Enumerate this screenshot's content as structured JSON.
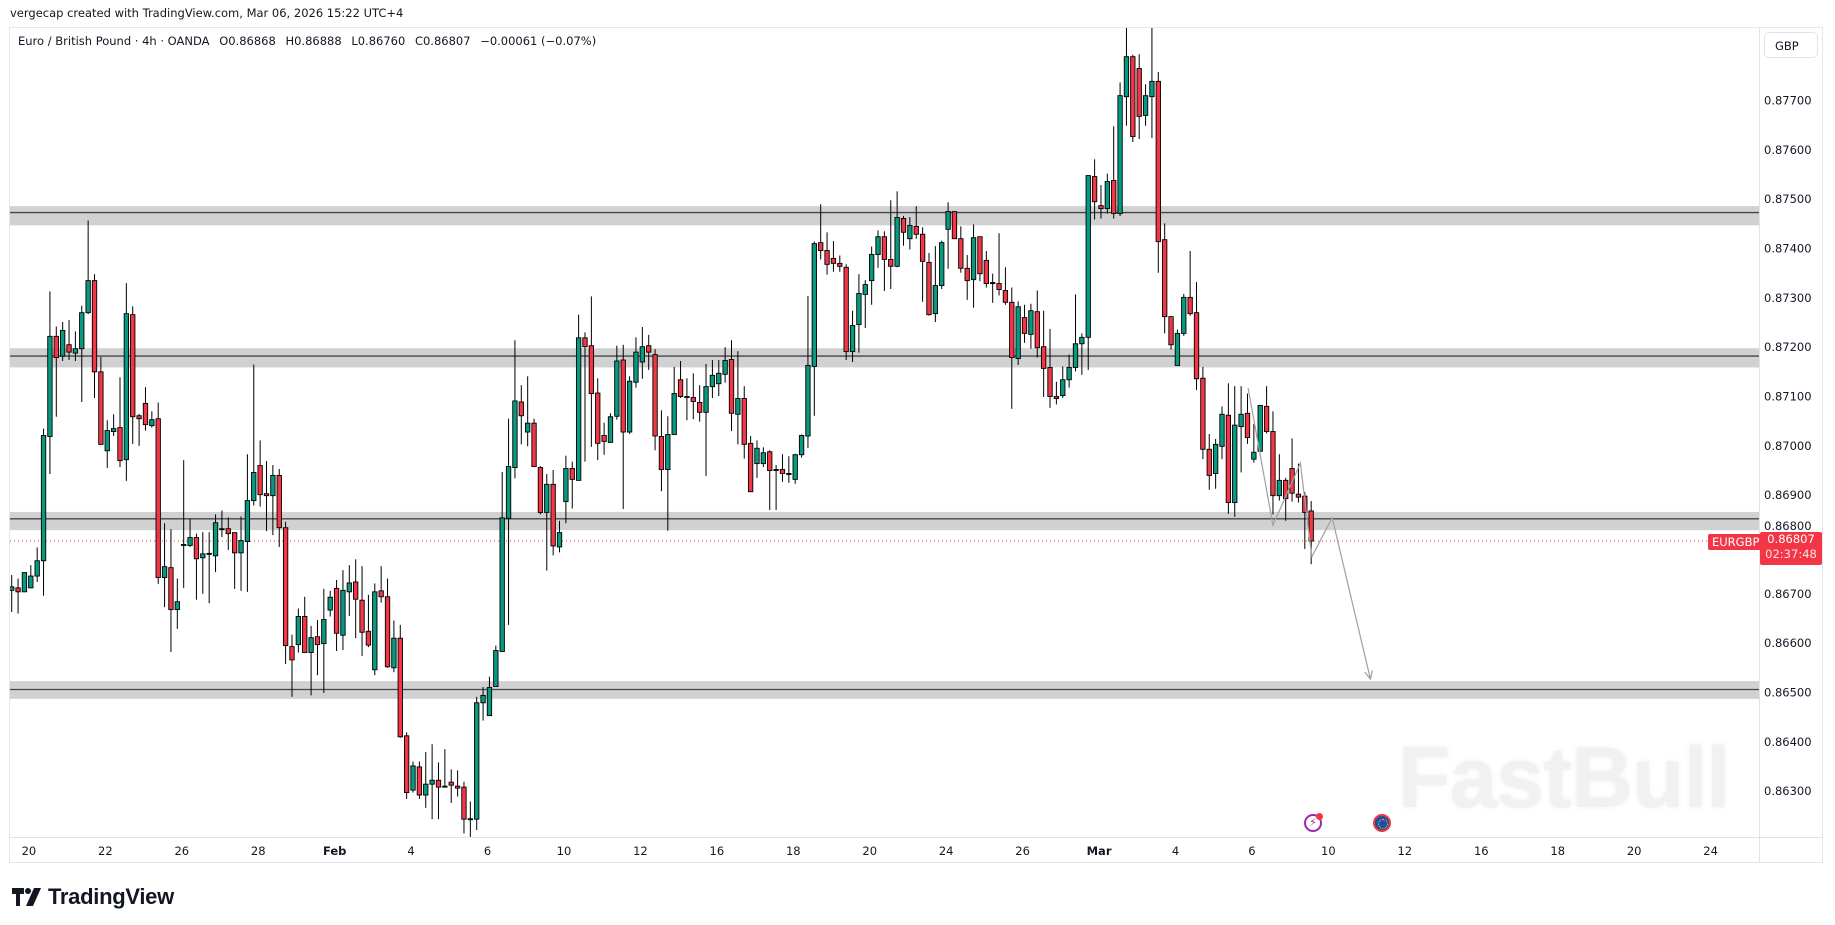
{
  "credit": "vergecap created with TradingView.com, Mar 06, 2026 15:22 UTC+4",
  "legend": {
    "symbol": "Euro / British Pound · 4h · OANDA",
    "open": "O0.86868",
    "high": "H0.86888",
    "low": "L0.86760",
    "close": "C0.86807",
    "change": "−0.00061 (−0.07%)"
  },
  "currency_button": "GBP",
  "current_price": {
    "ticker": "EURGBP",
    "price": "0.86807",
    "countdown": "02:37:48",
    "color": "#f23645"
  },
  "watermark": "FastBull",
  "brand": "TradingView",
  "events": [
    {
      "icon": "lightning-event-icon"
    },
    {
      "icon": "eu-flag-icon"
    }
  ],
  "colors": {
    "up": "#089981",
    "down": "#f23645",
    "zone": "#d1d1d1",
    "zone_line": "#434651",
    "drawing": "#a0a0a0"
  },
  "chart_data": {
    "type": "candlestick",
    "interval": "4h",
    "price_axis": {
      "labels": [
        "0.87700",
        "0.87600",
        "0.87500",
        "0.87400",
        "0.87300",
        "0.87200",
        "0.87100",
        "0.87000",
        "0.86900",
        "0.86800",
        "0.86700",
        "0.86600",
        "0.86500",
        "0.86400",
        "0.86300"
      ],
      "range": [
        0.8622,
        0.8785
      ]
    },
    "time_axis": {
      "labels": [
        "20",
        "22",
        "26",
        "28",
        "Feb",
        "4",
        "6",
        "10",
        "12",
        "16",
        "18",
        "20",
        "24",
        "26",
        "Mar",
        "4",
        "6",
        "10",
        "12",
        "16",
        "18",
        "20",
        "24"
      ],
      "bold": [
        "Feb",
        "Mar"
      ]
    },
    "zones": [
      {
        "top": 0.87486,
        "bottom": 0.87447,
        "line": 0.87473
      },
      {
        "top": 0.87198,
        "bottom": 0.87159,
        "line": 0.87182
      },
      {
        "top": 0.86866,
        "bottom": 0.86829,
        "line": 0.86852
      },
      {
        "top": 0.86523,
        "bottom": 0.86487,
        "line": 0.86506
      }
    ],
    "drawing": [
      [
        194.1,
        0.87117
      ],
      [
        198.0,
        0.86839
      ],
      [
        202.3,
        0.86965
      ],
      [
        204.1,
        0.86775
      ],
      [
        207.3,
        0.86854
      ],
      [
        213.3,
        0.86527
      ]
    ],
    "ohlc": [
      [
        0.86707,
        0.86738,
        0.86663,
        0.86714
      ],
      [
        0.86712,
        0.86731,
        0.8666,
        0.86704
      ],
      [
        0.86704,
        0.86743,
        0.86704,
        0.86743
      ],
      [
        0.86712,
        0.86758,
        0.86712,
        0.86736
      ],
      [
        0.86736,
        0.86794,
        0.86724,
        0.86767
      ],
      [
        0.86767,
        0.87035,
        0.86696,
        0.87021
      ],
      [
        0.87019,
        0.87313,
        0.86943,
        0.87222
      ],
      [
        0.87222,
        0.87242,
        0.87059,
        0.87179
      ],
      [
        0.87182,
        0.87251,
        0.87172,
        0.87234
      ],
      [
        0.87205,
        0.87255,
        0.87174,
        0.8719
      ],
      [
        0.87188,
        0.87232,
        0.87172,
        0.87197
      ],
      [
        0.87197,
        0.87284,
        0.87089,
        0.8727
      ],
      [
        0.8727,
        0.87457,
        0.87267,
        0.87335
      ],
      [
        0.87335,
        0.87348,
        0.87097,
        0.8715
      ],
      [
        0.8715,
        0.8718,
        0.87003,
        0.87003
      ],
      [
        0.8699,
        0.87052,
        0.86955,
        0.87031
      ],
      [
        0.87029,
        0.87064,
        0.8702,
        0.87035
      ],
      [
        0.87037,
        0.87139,
        0.86957,
        0.8697
      ],
      [
        0.86972,
        0.8733,
        0.86929,
        0.87268
      ],
      [
        0.87266,
        0.87283,
        0.87004,
        0.87059
      ],
      [
        0.87061,
        0.87065,
        0.87,
        0.87055
      ],
      [
        0.87086,
        0.87119,
        0.87031,
        0.87043
      ],
      [
        0.87041,
        0.8707,
        0.87037,
        0.87053
      ],
      [
        0.87055,
        0.87088,
        0.8672,
        0.86733
      ],
      [
        0.86733,
        0.86843,
        0.86673,
        0.86755
      ],
      [
        0.86753,
        0.86831,
        0.86582,
        0.86668
      ],
      [
        0.86668,
        0.86731,
        0.86629,
        0.86684
      ],
      [
        0.86798,
        0.86971,
        0.86712,
        0.868
      ],
      [
        0.86798,
        0.86852,
        0.86795,
        0.86814
      ],
      [
        0.86814,
        0.86822,
        0.86688,
        0.86771
      ],
      [
        0.86773,
        0.86825,
        0.867,
        0.86781
      ],
      [
        0.86781,
        0.86825,
        0.86681,
        0.86782
      ],
      [
        0.86777,
        0.86861,
        0.86744,
        0.86844
      ],
      [
        0.86832,
        0.86869,
        0.86815,
        0.86831
      ],
      [
        0.86832,
        0.86855,
        0.86789,
        0.86822
      ],
      [
        0.86824,
        0.86824,
        0.8671,
        0.86783
      ],
      [
        0.86783,
        0.86857,
        0.86706,
        0.86808
      ],
      [
        0.86806,
        0.86983,
        0.86704,
        0.86889
      ],
      [
        0.86889,
        0.87165,
        0.86879,
        0.86946
      ],
      [
        0.8696,
        0.87011,
        0.86877,
        0.86901
      ],
      [
        0.86903,
        0.86969,
        0.86827,
        0.86899
      ],
      [
        0.86899,
        0.86961,
        0.86819,
        0.8694
      ],
      [
        0.8694,
        0.86953,
        0.86795,
        0.86834
      ],
      [
        0.86834,
        0.86846,
        0.86558,
        0.86595
      ],
      [
        0.86593,
        0.86617,
        0.86491,
        0.86566
      ],
      [
        0.86597,
        0.8667,
        0.86581,
        0.86654
      ],
      [
        0.86654,
        0.86694,
        0.86581,
        0.86581
      ],
      [
        0.86581,
        0.86635,
        0.86494,
        0.86611
      ],
      [
        0.86613,
        0.86647,
        0.86535,
        0.86597
      ],
      [
        0.86599,
        0.8671,
        0.86499,
        0.86648
      ],
      [
        0.86667,
        0.86706,
        0.86654,
        0.86693
      ],
      [
        0.86711,
        0.86728,
        0.86584,
        0.8662
      ],
      [
        0.86616,
        0.86748,
        0.86586,
        0.86707
      ],
      [
        0.86704,
        0.86758,
        0.86655,
        0.86722
      ],
      [
        0.86724,
        0.8677,
        0.8661,
        0.86689
      ],
      [
        0.86687,
        0.86756,
        0.86574,
        0.86622
      ],
      [
        0.86624,
        0.86698,
        0.86592,
        0.86596
      ],
      [
        0.86546,
        0.86721,
        0.86535,
        0.86704
      ],
      [
        0.86706,
        0.86756,
        0.86682,
        0.86694
      ],
      [
        0.86694,
        0.86731,
        0.8655,
        0.86552
      ],
      [
        0.8655,
        0.86646,
        0.86541,
        0.8661
      ],
      [
        0.8661,
        0.86637,
        0.86408,
        0.8641
      ],
      [
        0.86412,
        0.86419,
        0.86284,
        0.86297
      ],
      [
        0.86302,
        0.8636,
        0.86297,
        0.86351
      ],
      [
        0.86349,
        0.8636,
        0.86284,
        0.86292
      ],
      [
        0.86292,
        0.86379,
        0.86266,
        0.86314
      ],
      [
        0.86314,
        0.86395,
        0.86243,
        0.86322
      ],
      [
        0.86322,
        0.86358,
        0.86243,
        0.86308
      ],
      [
        0.8631,
        0.86385,
        0.86307,
        0.8631
      ],
      [
        0.86318,
        0.86344,
        0.86276,
        0.86312
      ],
      [
        0.8631,
        0.86342,
        0.86289,
        0.86306
      ],
      [
        0.86308,
        0.86319,
        0.86214,
        0.86243
      ],
      [
        0.86243,
        0.86279,
        0.86207,
        0.86244
      ],
      [
        0.86243,
        0.86491,
        0.86221,
        0.86479
      ],
      [
        0.86479,
        0.86511,
        0.86443,
        0.86494
      ],
      [
        0.86453,
        0.86532,
        0.86453,
        0.8651
      ],
      [
        0.86512,
        0.86595,
        0.86512,
        0.86585
      ],
      [
        0.86583,
        0.86947,
        0.86583,
        0.86854
      ],
      [
        0.86853,
        0.87055,
        0.86637,
        0.86958
      ],
      [
        0.86956,
        0.87214,
        0.86934,
        0.87091
      ],
      [
        0.87089,
        0.87123,
        0.87003,
        0.87061
      ],
      [
        0.87028,
        0.87141,
        0.86999,
        0.87046
      ],
      [
        0.87046,
        0.87055,
        0.86958,
        0.86958
      ],
      [
        0.86956,
        0.86959,
        0.86861,
        0.86865
      ],
      [
        0.86865,
        0.86943,
        0.86747,
        0.86922
      ],
      [
        0.86922,
        0.86951,
        0.86778,
        0.86797
      ],
      [
        0.86795,
        0.86848,
        0.86784,
        0.86824
      ],
      [
        0.86887,
        0.8698,
        0.86843,
        0.86954
      ],
      [
        0.86954,
        0.86968,
        0.86873,
        0.86932
      ],
      [
        0.8693,
        0.87266,
        0.8693,
        0.87219
      ],
      [
        0.87219,
        0.8723,
        0.86968,
        0.87201
      ],
      [
        0.87203,
        0.87303,
        0.86998,
        0.87106
      ],
      [
        0.87107,
        0.87137,
        0.86971,
        0.87005
      ],
      [
        0.87021,
        0.87047,
        0.86982,
        0.87009
      ],
      [
        0.87007,
        0.87066,
        0.87006,
        0.87059
      ],
      [
        0.8706,
        0.87203,
        0.87053,
        0.87172
      ],
      [
        0.87174,
        0.87205,
        0.86872,
        0.87028
      ],
      [
        0.87028,
        0.87141,
        0.87024,
        0.87131
      ],
      [
        0.87129,
        0.8722,
        0.87118,
        0.8719
      ],
      [
        0.8717,
        0.87241,
        0.87136,
        0.87201
      ],
      [
        0.87203,
        0.87225,
        0.87154,
        0.8719
      ],
      [
        0.87185,
        0.87196,
        0.86991,
        0.8702
      ],
      [
        0.87019,
        0.87072,
        0.86908,
        0.86952
      ],
      [
        0.86952,
        0.8706,
        0.86828,
        0.87023
      ],
      [
        0.87023,
        0.8716,
        0.87023,
        0.87106
      ],
      [
        0.87134,
        0.87172,
        0.87097,
        0.871
      ],
      [
        0.871,
        0.87137,
        0.87052,
        0.871
      ],
      [
        0.87098,
        0.87147,
        0.87054,
        0.8709
      ],
      [
        0.87088,
        0.87123,
        0.87049,
        0.87068
      ],
      [
        0.87068,
        0.87166,
        0.86939,
        0.8712
      ],
      [
        0.8712,
        0.87174,
        0.87097,
        0.87143
      ],
      [
        0.87126,
        0.87174,
        0.87101,
        0.87147
      ],
      [
        0.87145,
        0.872,
        0.87128,
        0.87173
      ],
      [
        0.87175,
        0.87214,
        0.8703,
        0.87066
      ],
      [
        0.87064,
        0.87192,
        0.87003,
        0.87096
      ],
      [
        0.87096,
        0.87121,
        0.86974,
        0.87003
      ],
      [
        0.87005,
        0.8702,
        0.86907,
        0.86907
      ],
      [
        0.86964,
        0.87011,
        0.86935,
        0.86995
      ],
      [
        0.86964,
        0.86997,
        0.86957,
        0.86986
      ],
      [
        0.86988,
        0.86991,
        0.8687,
        0.8695
      ],
      [
        0.86952,
        0.86961,
        0.8687,
        0.86952
      ],
      [
        0.86952,
        0.86983,
        0.86927,
        0.86944
      ],
      [
        0.86944,
        0.86979,
        0.86925,
        0.86944
      ],
      [
        0.86932,
        0.86984,
        0.86923,
        0.86982
      ],
      [
        0.86982,
        0.87023,
        0.86976,
        0.87021
      ],
      [
        0.8702,
        0.87304,
        0.86996,
        0.87163
      ],
      [
        0.87161,
        0.87414,
        0.87061,
        0.8741
      ],
      [
        0.87412,
        0.8749,
        0.87378,
        0.87396
      ],
      [
        0.87396,
        0.87433,
        0.87347,
        0.87368
      ],
      [
        0.8738,
        0.87415,
        0.87353,
        0.8737
      ],
      [
        0.8737,
        0.87386,
        0.87353,
        0.87364
      ],
      [
        0.87362,
        0.87368,
        0.87174,
        0.87191
      ],
      [
        0.87191,
        0.87274,
        0.8717,
        0.87244
      ],
      [
        0.87246,
        0.87348,
        0.87189,
        0.87309
      ],
      [
        0.87307,
        0.87336,
        0.87239,
        0.87327
      ],
      [
        0.87335,
        0.87404,
        0.87286,
        0.87388
      ],
      [
        0.87388,
        0.87437,
        0.87361,
        0.87424
      ],
      [
        0.87424,
        0.87435,
        0.87314,
        0.87378
      ],
      [
        0.87378,
        0.87498,
        0.87318,
        0.87364
      ],
      [
        0.87364,
        0.87516,
        0.87362,
        0.87463
      ],
      [
        0.87461,
        0.87466,
        0.87406,
        0.87433
      ],
      [
        0.8742,
        0.87464,
        0.87398,
        0.87447
      ],
      [
        0.87445,
        0.87486,
        0.8742,
        0.87429
      ],
      [
        0.87429,
        0.87443,
        0.87292,
        0.87374
      ],
      [
        0.87372,
        0.87391,
        0.87264,
        0.87266
      ],
      [
        0.87268,
        0.87405,
        0.87251,
        0.87325
      ],
      [
        0.87325,
        0.87416,
        0.87318,
        0.87412
      ],
      [
        0.87439,
        0.87494,
        0.87359,
        0.87475
      ],
      [
        0.87475,
        0.87475,
        0.8742,
        0.8742
      ],
      [
        0.8742,
        0.87445,
        0.87351,
        0.8736
      ],
      [
        0.8736,
        0.87387,
        0.87296,
        0.87335
      ],
      [
        0.87337,
        0.87449,
        0.8728,
        0.87422
      ],
      [
        0.87424,
        0.87424,
        0.87334,
        0.87349
      ],
      [
        0.87376,
        0.87395,
        0.87321,
        0.87329
      ],
      [
        0.87331,
        0.87349,
        0.8729,
        0.87331
      ],
      [
        0.87329,
        0.87431,
        0.87305,
        0.87317
      ],
      [
        0.87315,
        0.87362,
        0.87286,
        0.87291
      ],
      [
        0.87291,
        0.87321,
        0.87075,
        0.87179
      ],
      [
        0.87177,
        0.87293,
        0.87164,
        0.87282
      ],
      [
        0.8726,
        0.87286,
        0.87209,
        0.87228
      ],
      [
        0.87226,
        0.87288,
        0.87197,
        0.87274
      ],
      [
        0.87272,
        0.87315,
        0.87179,
        0.87199
      ],
      [
        0.87201,
        0.87274,
        0.87099,
        0.87157
      ],
      [
        0.87159,
        0.87237,
        0.87077,
        0.871
      ],
      [
        0.871,
        0.8713,
        0.87084,
        0.87096
      ],
      [
        0.87102,
        0.87161,
        0.87097,
        0.87134
      ],
      [
        0.87134,
        0.87185,
        0.87118,
        0.87159
      ],
      [
        0.87159,
        0.87307,
        0.87151,
        0.87207
      ],
      [
        0.87207,
        0.87228,
        0.87144,
        0.8722
      ],
      [
        0.8722,
        0.87548,
        0.87154,
        0.87548
      ],
      [
        0.87546,
        0.87581,
        0.87459,
        0.87495
      ],
      [
        0.87487,
        0.87529,
        0.87461,
        0.87481
      ],
      [
        0.87481,
        0.87552,
        0.87471,
        0.87536
      ],
      [
        0.87538,
        0.87648,
        0.87461,
        0.87471
      ],
      [
        0.87471,
        0.87737,
        0.87466,
        0.8771
      ],
      [
        0.87708,
        0.87849,
        0.87649,
        0.87789
      ],
      [
        0.87789,
        0.87793,
        0.87616,
        0.87627
      ],
      [
        0.87765,
        0.87794,
        0.87622,
        0.87668
      ],
      [
        0.8767,
        0.87733,
        0.87649,
        0.8771
      ],
      [
        0.87708,
        0.87849,
        0.87624,
        0.87739
      ],
      [
        0.87739,
        0.87758,
        0.87351,
        0.87414
      ],
      [
        0.87418,
        0.87451,
        0.87228,
        0.87262
      ],
      [
        0.87262,
        0.87262,
        0.87195,
        0.87205
      ],
      [
        0.87163,
        0.87236,
        0.87163,
        0.87228
      ],
      [
        0.87228,
        0.87308,
        0.87223,
        0.87301
      ],
      [
        0.87301,
        0.87395,
        0.87264,
        0.87268
      ],
      [
        0.8727,
        0.87332,
        0.87113,
        0.87136
      ],
      [
        0.87137,
        0.8716,
        0.86973,
        0.86993
      ],
      [
        0.86993,
        0.87024,
        0.86911,
        0.8694
      ],
      [
        0.86944,
        0.87014,
        0.86913,
        0.87003
      ],
      [
        0.86999,
        0.8708,
        0.86973,
        0.87064
      ],
      [
        0.87062,
        0.87127,
        0.86862,
        0.86885
      ],
      [
        0.86885,
        0.87121,
        0.86856,
        0.87042
      ],
      [
        0.87039,
        0.87121,
        0.86946,
        0.87064
      ],
      [
        0.87066,
        0.87106,
        0.87004,
        0.87017
      ],
      [
        0.86973,
        0.87044,
        0.86966,
        0.86987
      ],
      [
        0.86989,
        0.87082,
        0.86989,
        0.87082
      ],
      [
        0.8708,
        0.87121,
        0.87025,
        0.87029
      ],
      [
        0.87029,
        0.8707,
        0.86861,
        0.86899
      ],
      [
        0.86899,
        0.86983,
        0.86889,
        0.8693
      ],
      [
        0.8693,
        0.86935,
        0.86848,
        0.86893
      ],
      [
        0.86954,
        0.87015,
        0.86887,
        0.86904
      ],
      [
        0.86902,
        0.86964,
        0.86885,
        0.86896
      ],
      [
        0.86898,
        0.86906,
        0.86791,
        0.86865
      ],
      [
        0.86868,
        0.86888,
        0.8676,
        0.86807
      ]
    ]
  }
}
